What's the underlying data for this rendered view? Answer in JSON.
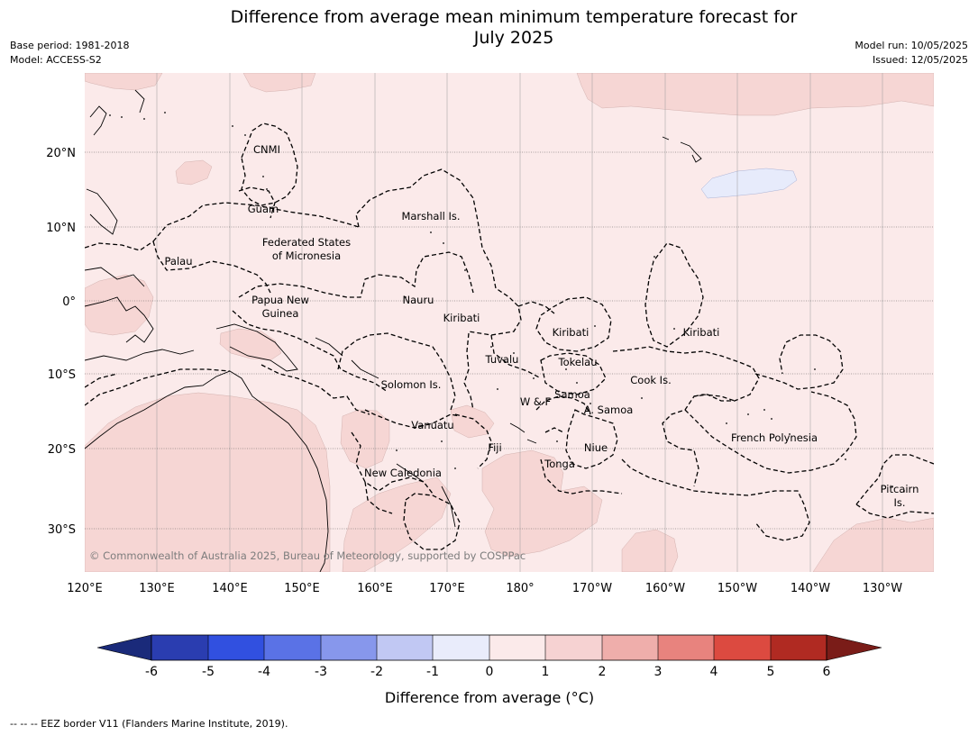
{
  "header": {
    "title_line1": "Difference from average mean minimum temperature forecast for",
    "title_line2": "July 2025",
    "base_period": "Base period: 1981-2018",
    "model": "Model: ACCESS-S2",
    "model_run": "Model run: 10/05/2025",
    "issued": "Issued: 12/05/2025"
  },
  "map": {
    "copyright": "© Commonwealth of Australia 2025, Bureau of Meteorology, supported by COSPPac",
    "lat_labels": [
      "20°N",
      "10°N",
      "0°",
      "10°S",
      "20°S",
      "30°S"
    ],
    "lon_labels": [
      "120°E",
      "130°E",
      "140°E",
      "150°E",
      "160°E",
      "170°E",
      "180°",
      "170°W",
      "160°W",
      "150°W",
      "140°W",
      "130°W"
    ],
    "regions": [
      {
        "id": "cnmi",
        "label": "CNMI"
      },
      {
        "id": "guam",
        "label": "Guam"
      },
      {
        "id": "marshall",
        "label": "Marshall Is."
      },
      {
        "id": "fsm1",
        "label": "Federated States"
      },
      {
        "id": "fsm2",
        "label": "of Micronesia"
      },
      {
        "id": "palau",
        "label": "Palau"
      },
      {
        "id": "nauru",
        "label": "Nauru"
      },
      {
        "id": "png1",
        "label": "Papua New"
      },
      {
        "id": "png2",
        "label": "Guinea"
      },
      {
        "id": "kiribati-w",
        "label": "Kiribati"
      },
      {
        "id": "kiribati-c",
        "label": "Kiribati"
      },
      {
        "id": "kiribati-e",
        "label": "Kiribati"
      },
      {
        "id": "tuvalu",
        "label": "Tuvalu"
      },
      {
        "id": "tokelau",
        "label": "Tokelau"
      },
      {
        "id": "cook",
        "label": "Cook Is."
      },
      {
        "id": "solomon",
        "label": "Solomon Is."
      },
      {
        "id": "samoa",
        "label": "Samoa"
      },
      {
        "id": "wf",
        "label": "W & F"
      },
      {
        "id": "asamoa",
        "label": "A. Samoa"
      },
      {
        "id": "vanuatu",
        "label": "Vanuatu"
      },
      {
        "id": "fiji",
        "label": "Fiji"
      },
      {
        "id": "niue",
        "label": "Niue"
      },
      {
        "id": "french-polynesia",
        "label": "French Polynesia"
      },
      {
        "id": "tonga",
        "label": "Tonga"
      },
      {
        "id": "new-caledonia",
        "label": "New Caledonia"
      },
      {
        "id": "pitcairn1",
        "label": "Pitcairn"
      },
      {
        "id": "pitcairn2",
        "label": "Is."
      }
    ]
  },
  "colorbar": {
    "ticks": [
      "-6",
      "-5",
      "-4",
      "-3",
      "-2",
      "-1",
      "0",
      "1",
      "2",
      "3",
      "4",
      "5",
      "6"
    ],
    "colors": [
      "#1a2a7a",
      "#2a3db0",
      "#3150e0",
      "#5a72e6",
      "#8797ec",
      "#c1c8f3",
      "#e9ecfb",
      "#fbeaea",
      "#f6d2d2",
      "#efaeab",
      "#e8837e",
      "#dc4a40",
      "#b02a22",
      "#7a1c18"
    ],
    "label": "Difference from average ($^\\circ$C)",
    "label_display": "Difference from average (°C)"
  },
  "footer": {
    "legend": "--  --  -- EEZ border V11 (Flanders Marine Institute, 2019)."
  }
}
